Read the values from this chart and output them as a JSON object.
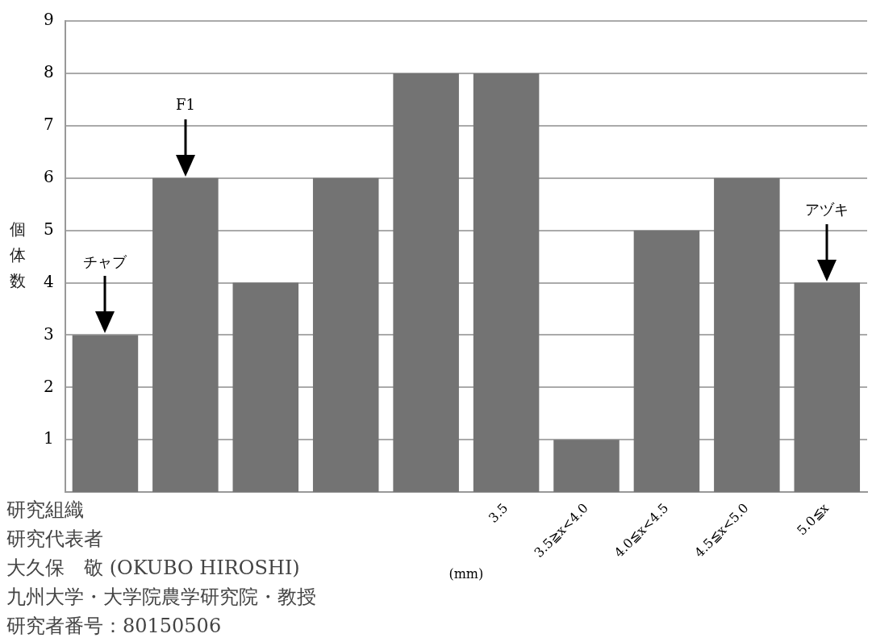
{
  "chart_data": {
    "type": "bar",
    "ylabel": "個体数",
    "xlabel": "(mm)",
    "categories": [
      null,
      null,
      null,
      null,
      null,
      "3.5",
      "3.5≧x<4.0",
      "4.0≦x<4.5",
      "4.5≦x<5.0",
      "5.0≦x"
    ],
    "values": [
      3,
      6,
      4,
      6,
      8,
      8,
      1,
      5,
      6,
      4
    ],
    "color": "#737373",
    "ylim": [
      0,
      9
    ],
    "yticks": [
      1,
      2,
      3,
      4,
      5,
      6,
      7,
      8,
      9
    ],
    "grid": "y",
    "annotations": [
      "チャブ",
      "F1",
      "アヅキ",
      "研究組織",
      "研究代表者",
      "大久保　敬 (OKUBO HIROSHI)",
      "九州大学・大学院農学研究院・教授",
      "研究者番号：80150506"
    ]
  }
}
